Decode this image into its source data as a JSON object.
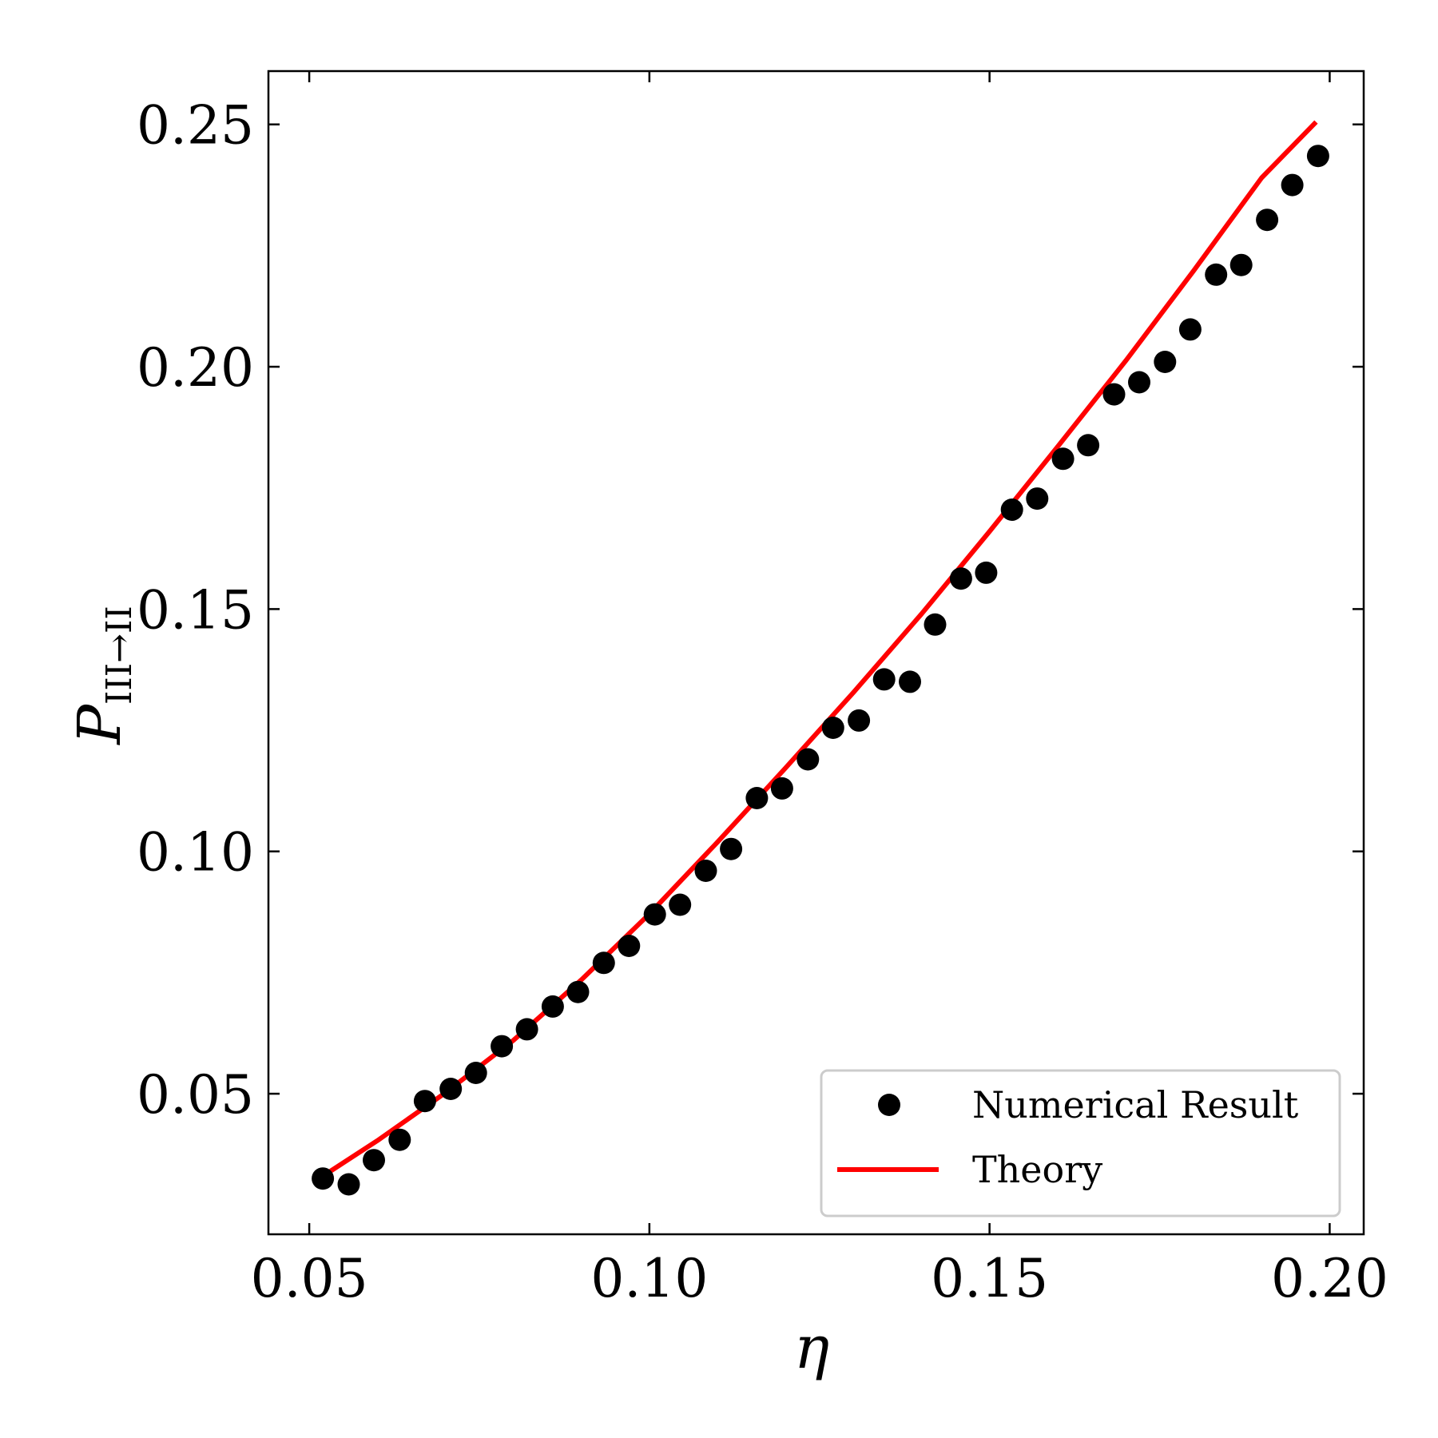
{
  "chart_data": {
    "type": "scatter",
    "xlabel": "η",
    "ylabel": {
      "main": "P",
      "subscript": "III→II"
    },
    "xlim": [
      0.044,
      0.205
    ],
    "ylim": [
      0.021,
      0.261
    ],
    "xticks": [
      0.05,
      0.1,
      0.15,
      0.2
    ],
    "xtick_labels": [
      "0.05",
      "0.10",
      "0.15",
      "0.20"
    ],
    "yticks": [
      0.05,
      0.1,
      0.15,
      0.2,
      0.25
    ],
    "ytick_labels": [
      "0.05",
      "0.10",
      "0.15",
      "0.20",
      "0.25"
    ],
    "grid": false,
    "legend_position": "lower-right",
    "series": [
      {
        "name": "Numerical Result",
        "kind": "scatter",
        "color": "#000000",
        "x": [
          0.052,
          0.0558,
          0.0595,
          0.0633,
          0.067,
          0.0708,
          0.0745,
          0.0783,
          0.082,
          0.0858,
          0.0895,
          0.0933,
          0.097,
          0.1008,
          0.1045,
          0.1083,
          0.112,
          0.1158,
          0.1195,
          0.1233,
          0.127,
          0.1308,
          0.1345,
          0.1383,
          0.142,
          0.1458,
          0.1495,
          0.1533,
          0.157,
          0.1608,
          0.1645,
          0.1683,
          0.172,
          0.1758,
          0.1795,
          0.1833,
          0.187,
          0.1908,
          0.1945,
          0.1983
        ],
        "y": [
          0.0325,
          0.0313,
          0.0363,
          0.0405,
          0.0485,
          0.051,
          0.0543,
          0.0598,
          0.0633,
          0.068,
          0.071,
          0.077,
          0.0805,
          0.087,
          0.089,
          0.096,
          0.1005,
          0.111,
          0.113,
          0.119,
          0.1255,
          0.127,
          0.1355,
          0.135,
          0.1468,
          0.1563,
          0.1575,
          0.1705,
          0.1728,
          0.181,
          0.1838,
          0.1943,
          0.1968,
          0.201,
          0.2077,
          0.219,
          0.221,
          0.2303,
          0.2375,
          0.2435
        ]
      },
      {
        "name": "Theory",
        "kind": "line",
        "color": "#ff0000",
        "x": [
          0.052,
          0.06,
          0.07,
          0.08,
          0.09,
          0.1,
          0.11,
          0.12,
          0.13,
          0.14,
          0.15,
          0.16,
          0.17,
          0.18,
          0.19,
          0.198
        ],
        "y": [
          0.033,
          0.0403,
          0.0502,
          0.061,
          0.0735,
          0.0871,
          0.1019,
          0.1172,
          0.1328,
          0.149,
          0.166,
          0.1835,
          0.2012,
          0.2198,
          0.239,
          0.2505
        ]
      }
    ]
  }
}
